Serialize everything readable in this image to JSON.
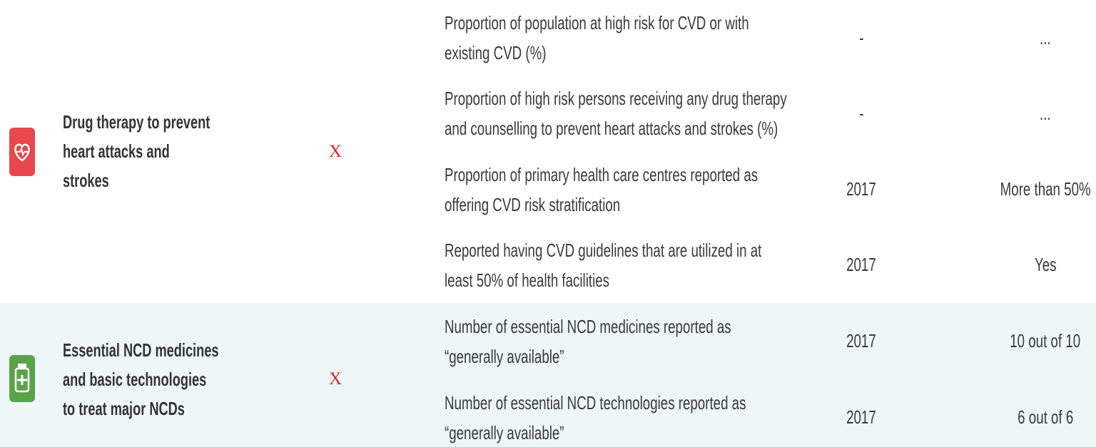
{
  "table": {
    "groups": [
      {
        "name_lines": [
          "Drug therapy to prevent",
          "heart attacks and",
          "strokes"
        ],
        "mark": "X",
        "indicators": [
          {
            "lines": [
              "Proportion of population at high risk for CVD or with",
              "existing CVD (%)"
            ],
            "year": "-",
            "value": "..."
          },
          {
            "lines": [
              "Proportion of high risk persons receiving any drug therapy",
              "and counselling to prevent heart attacks and strokes (%)"
            ],
            "year": "-",
            "value": "..."
          },
          {
            "lines": [
              "Proportion of primary health care centres reported as",
              "offering CVD risk stratification"
            ],
            "year": "2017",
            "value": "More than 50%"
          },
          {
            "lines": [
              "Reported having CVD guidelines that are utilized in at",
              "least 50% of health facilities"
            ],
            "year": "2017",
            "value": "Yes"
          }
        ]
      },
      {
        "name_lines": [
          "Essential NCD medicines",
          "and basic technologies",
          "to treat major NCDs"
        ],
        "mark": "X",
        "indicators": [
          {
            "lines": [
              "Number of essential NCD medicines reported as",
              "“generally available”"
            ],
            "year": "2017",
            "value": "10 out of 10"
          },
          {
            "lines": [
              "Number of essential NCD technologies reported as",
              "“generally available”"
            ],
            "year": "2017",
            "value": "6 out of 6"
          }
        ]
      }
    ]
  }
}
